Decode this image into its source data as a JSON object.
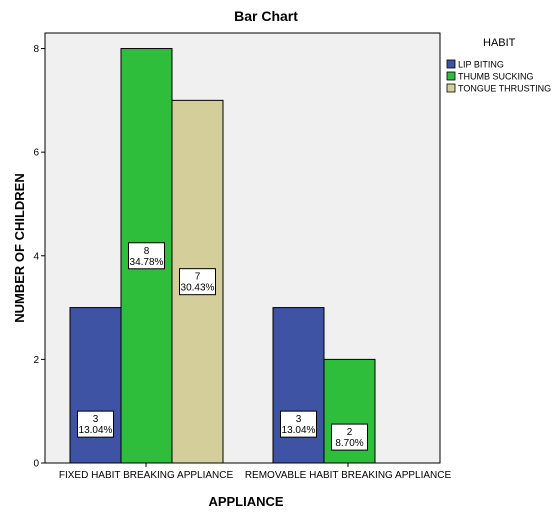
{
  "chart_data": {
    "type": "bar",
    "title": "Bar Chart",
    "xlabel": "APPLIANCE",
    "ylabel": "NUMBER OF CHILDREN",
    "categories": [
      "FIXED HABIT BREAKING APPLIANCE",
      "REMOVABLE HABIT BREAKING APPLIANCE"
    ],
    "ylim": [
      0,
      8.3
    ],
    "yticks": [
      0,
      2,
      4,
      6,
      8
    ],
    "legend_title": "HABIT",
    "legend_position": "top-right",
    "grid": false,
    "plot_background": "#f0f0f0",
    "series": [
      {
        "name": "LIP BITING",
        "color": "#3e53a4",
        "values": [
          3,
          3
        ],
        "labels": [
          [
            "3",
            "13.04%"
          ],
          [
            "3",
            "13.04%"
          ]
        ]
      },
      {
        "name": "THUMB SUCKING",
        "color": "#2fbd3c",
        "values": [
          8,
          2
        ],
        "labels": [
          [
            "8",
            "34.78%"
          ],
          [
            "2",
            "8.70%"
          ]
        ]
      },
      {
        "name": "TONGUE THRUSTING",
        "color": "#d4cf9a",
        "values": [
          7,
          null
        ],
        "labels": [
          [
            "7",
            "30.43%"
          ],
          null
        ]
      }
    ]
  }
}
